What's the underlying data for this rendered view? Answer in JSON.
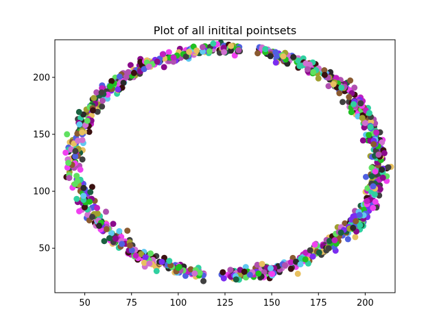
{
  "chart_data": {
    "type": "scatter",
    "title": "Plot of all initital pointsets",
    "xlabel": "",
    "ylabel": "",
    "xlim": [
      34,
      216
    ],
    "ylim": [
      11,
      233
    ],
    "xticks": [
      50,
      75,
      100,
      125,
      150,
      175,
      200
    ],
    "yticks": [
      50,
      100,
      150,
      200
    ],
    "grid": false,
    "legend": "none",
    "ellipse": {
      "cx": 126,
      "cy": 126,
      "rx": 81,
      "ry": 99,
      "gap_top": [
        133,
        142
      ],
      "gap_bottom": [
        114,
        122
      ]
    },
    "palette": [
      "#7b2cf0",
      "#c020c0",
      "#8b0a8b",
      "#2a2a2a",
      "#3a1010",
      "#30d0a0",
      "#20c020",
      "#e8c060",
      "#60c8f0",
      "#f040f0",
      "#a0a030",
      "#8a5a30",
      "#404040",
      "#1a6040",
      "#d070d0",
      "#60e060",
      "#5060e0",
      "#b050b0"
    ],
    "point_count": 1100
  }
}
